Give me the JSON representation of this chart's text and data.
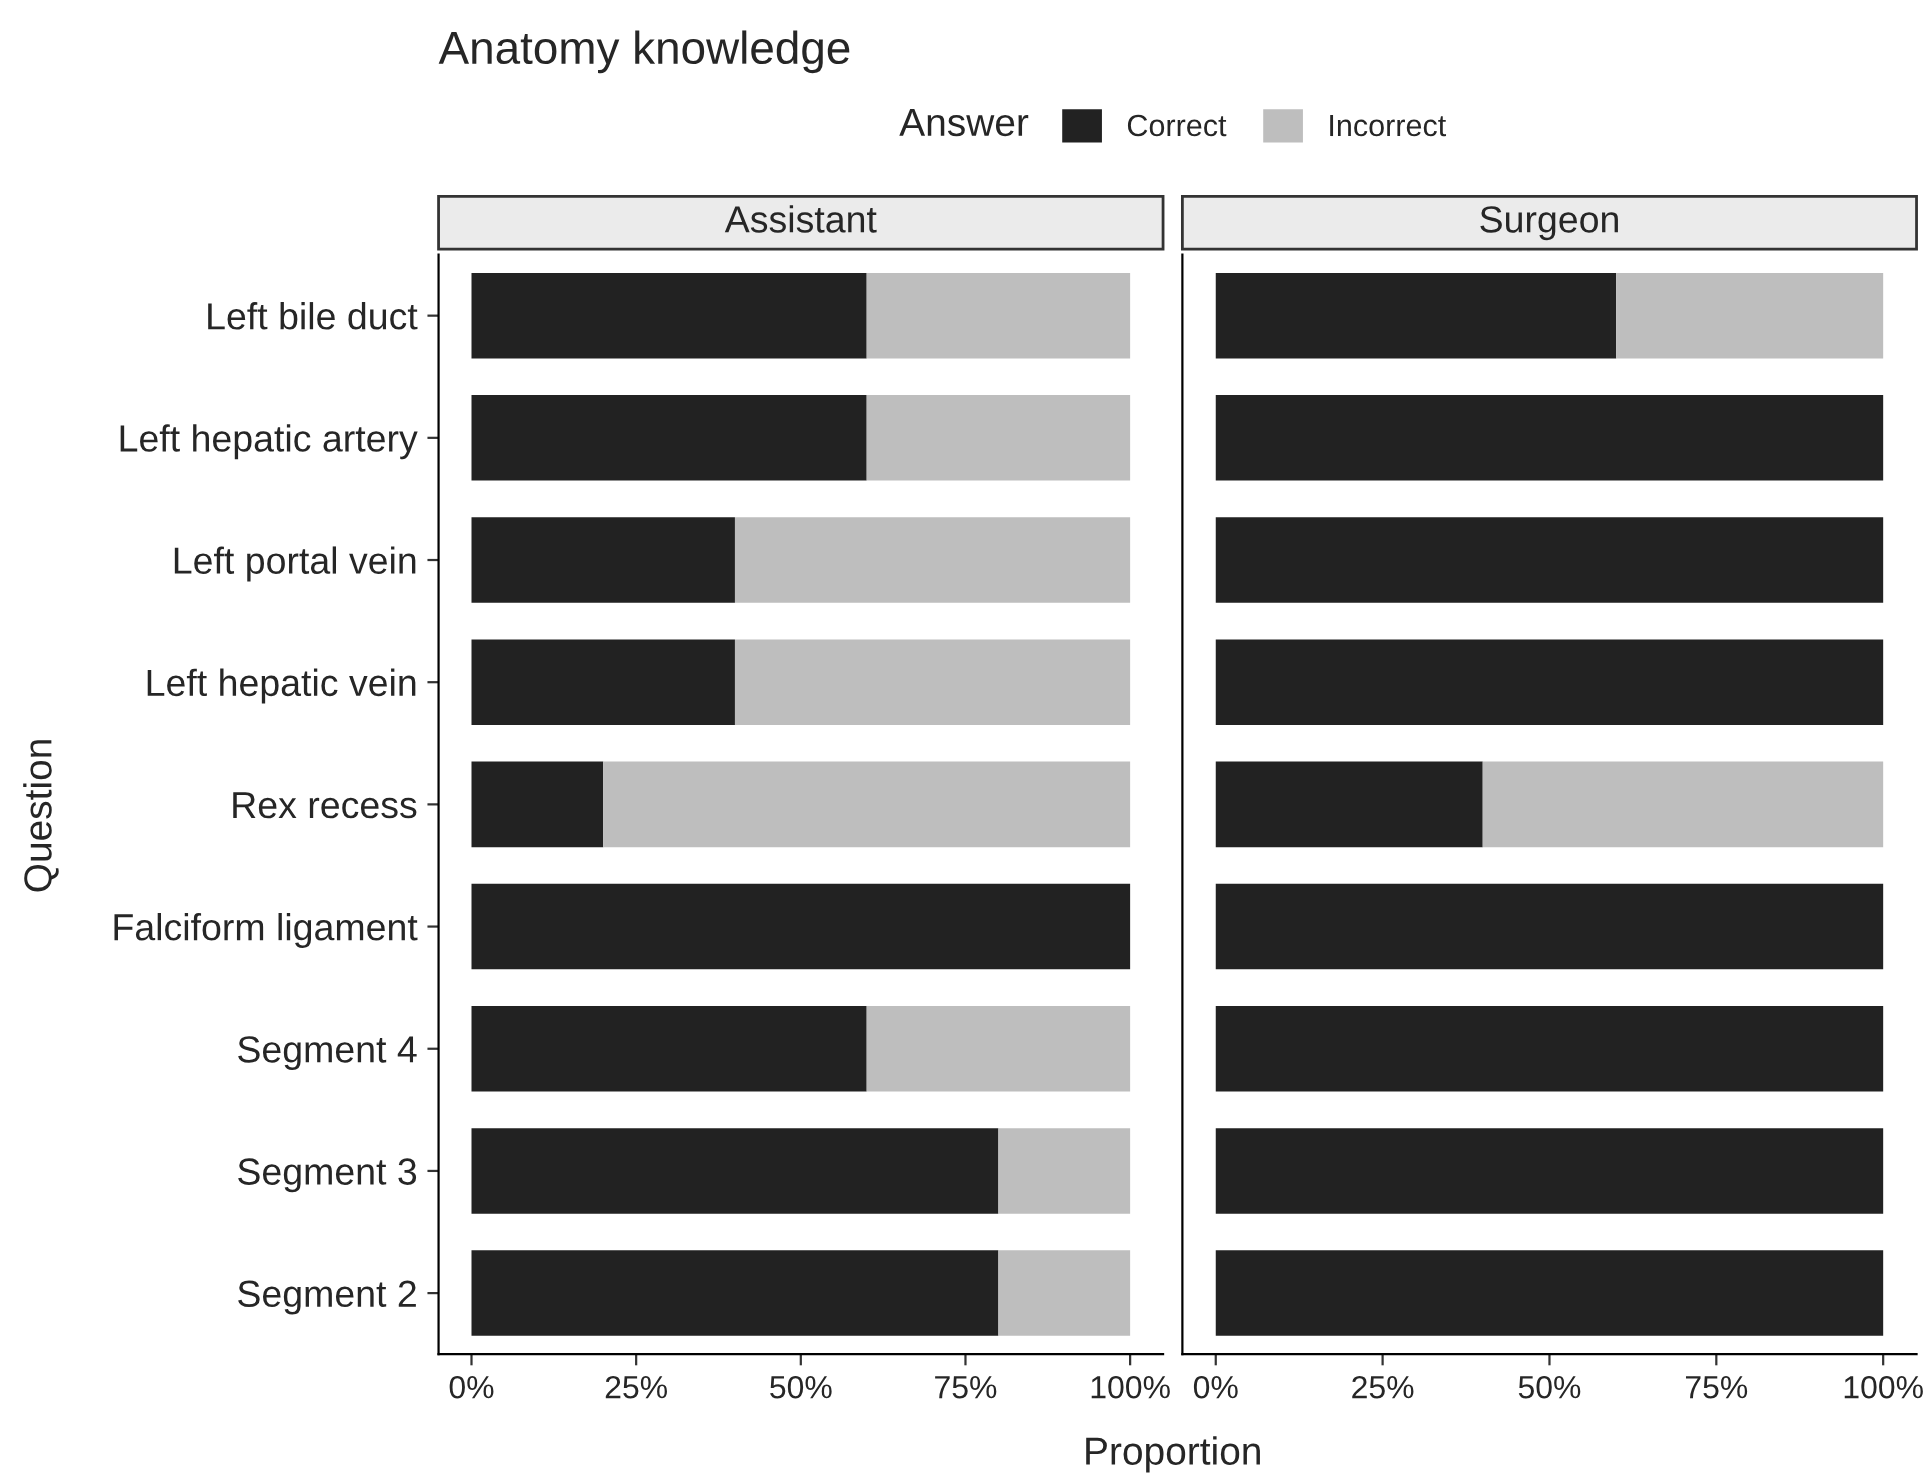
{
  "chart_data": [
    {
      "type": "bar",
      "title": "Anatomy knowledge",
      "subtitle": "Assistant",
      "xlabel": "Proportion",
      "ylabel": "Question",
      "legend_title": "Answer",
      "legend": "top",
      "orientation": "horizontal",
      "stacked": true,
      "categories": [
        "Left bile duct",
        "Left hepatic artery",
        "Left portal vein",
        "Left hepatic vein",
        "Rex recess",
        "Falciform ligament",
        "Segment 4",
        "Segment 3",
        "Segment 2"
      ],
      "series": [
        {
          "name": "Correct",
          "color": "#222222",
          "values": [
            60,
            60,
            40,
            40,
            20,
            100,
            60,
            80,
            80
          ]
        },
        {
          "name": "Incorrect",
          "color": "#bebebe",
          "values": [
            40,
            40,
            60,
            60,
            80,
            0,
            40,
            20,
            20
          ]
        }
      ],
      "xlim": [
        -5,
        105
      ],
      "xticks": [
        {
          "value": 0,
          "label": "0%"
        },
        {
          "value": 25,
          "label": "25%"
        },
        {
          "value": 50,
          "label": "50%"
        },
        {
          "value": 75,
          "label": "75%"
        },
        {
          "value": 100,
          "label": "100%"
        }
      ]
    },
    {
      "type": "bar",
      "subtitle": "Surgeon",
      "orientation": "horizontal",
      "stacked": true,
      "tick_labels": "x",
      "categories": [
        null,
        null,
        null,
        null,
        null,
        null,
        null,
        null,
        null
      ],
      "series": [
        {
          "color": "#222222",
          "values": [
            60,
            100,
            100,
            100,
            40,
            100,
            100,
            100,
            100
          ]
        },
        {
          "color": "#bebebe",
          "values": [
            40,
            0,
            0,
            0,
            60,
            0,
            0,
            0,
            0
          ]
        }
      ],
      "xlim": [
        -5,
        105
      ],
      "xticks": [
        {
          "value": 0,
          "label": "0%"
        },
        {
          "value": 25,
          "label": "25%"
        },
        {
          "value": 50,
          "label": "50%"
        },
        {
          "value": 75,
          "label": "75%"
        },
        {
          "value": 100,
          "label": "100%"
        }
      ]
    }
  ]
}
